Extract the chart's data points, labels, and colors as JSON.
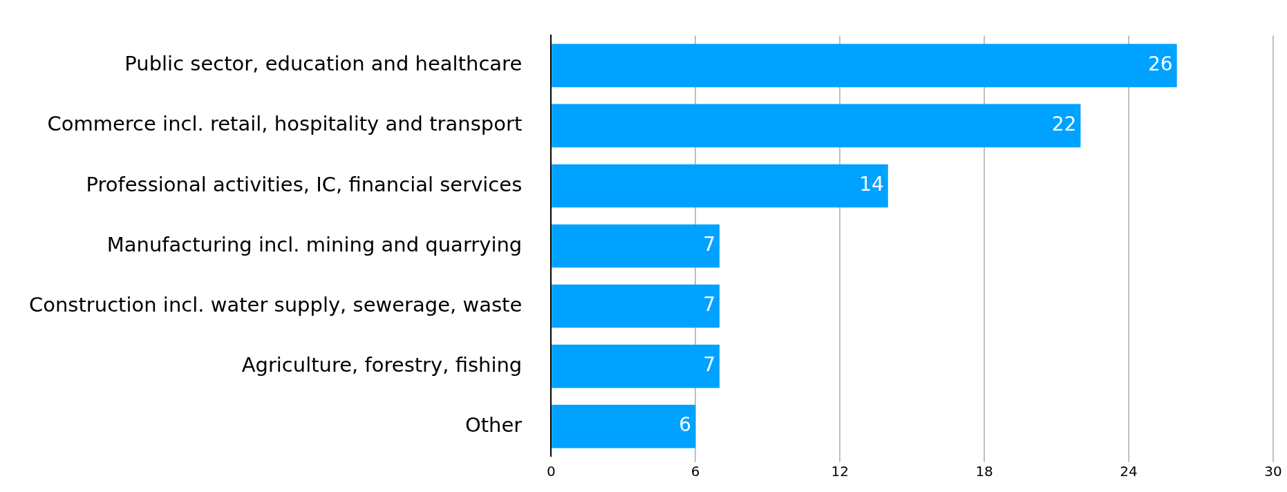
{
  "chart_data": {
    "type": "bar",
    "orientation": "horizontal",
    "categories": [
      "Public sector, education and healthcare",
      "Commerce incl. retail, hospitality and transport",
      "Professional activities, IC, financial services",
      "Manufacturing incl. mining and quarrying",
      "Construction incl. water supply, sewerage, waste",
      "Agriculture, forestry, fishing",
      "Other"
    ],
    "values": [
      26,
      22,
      14,
      7,
      7,
      7,
      6
    ],
    "color": "#00a2ff",
    "xlim": [
      0,
      30
    ],
    "xticks": [
      0,
      6,
      12,
      18,
      24,
      30
    ],
    "grid": "x",
    "data_labels": true,
    "legend": false
  }
}
